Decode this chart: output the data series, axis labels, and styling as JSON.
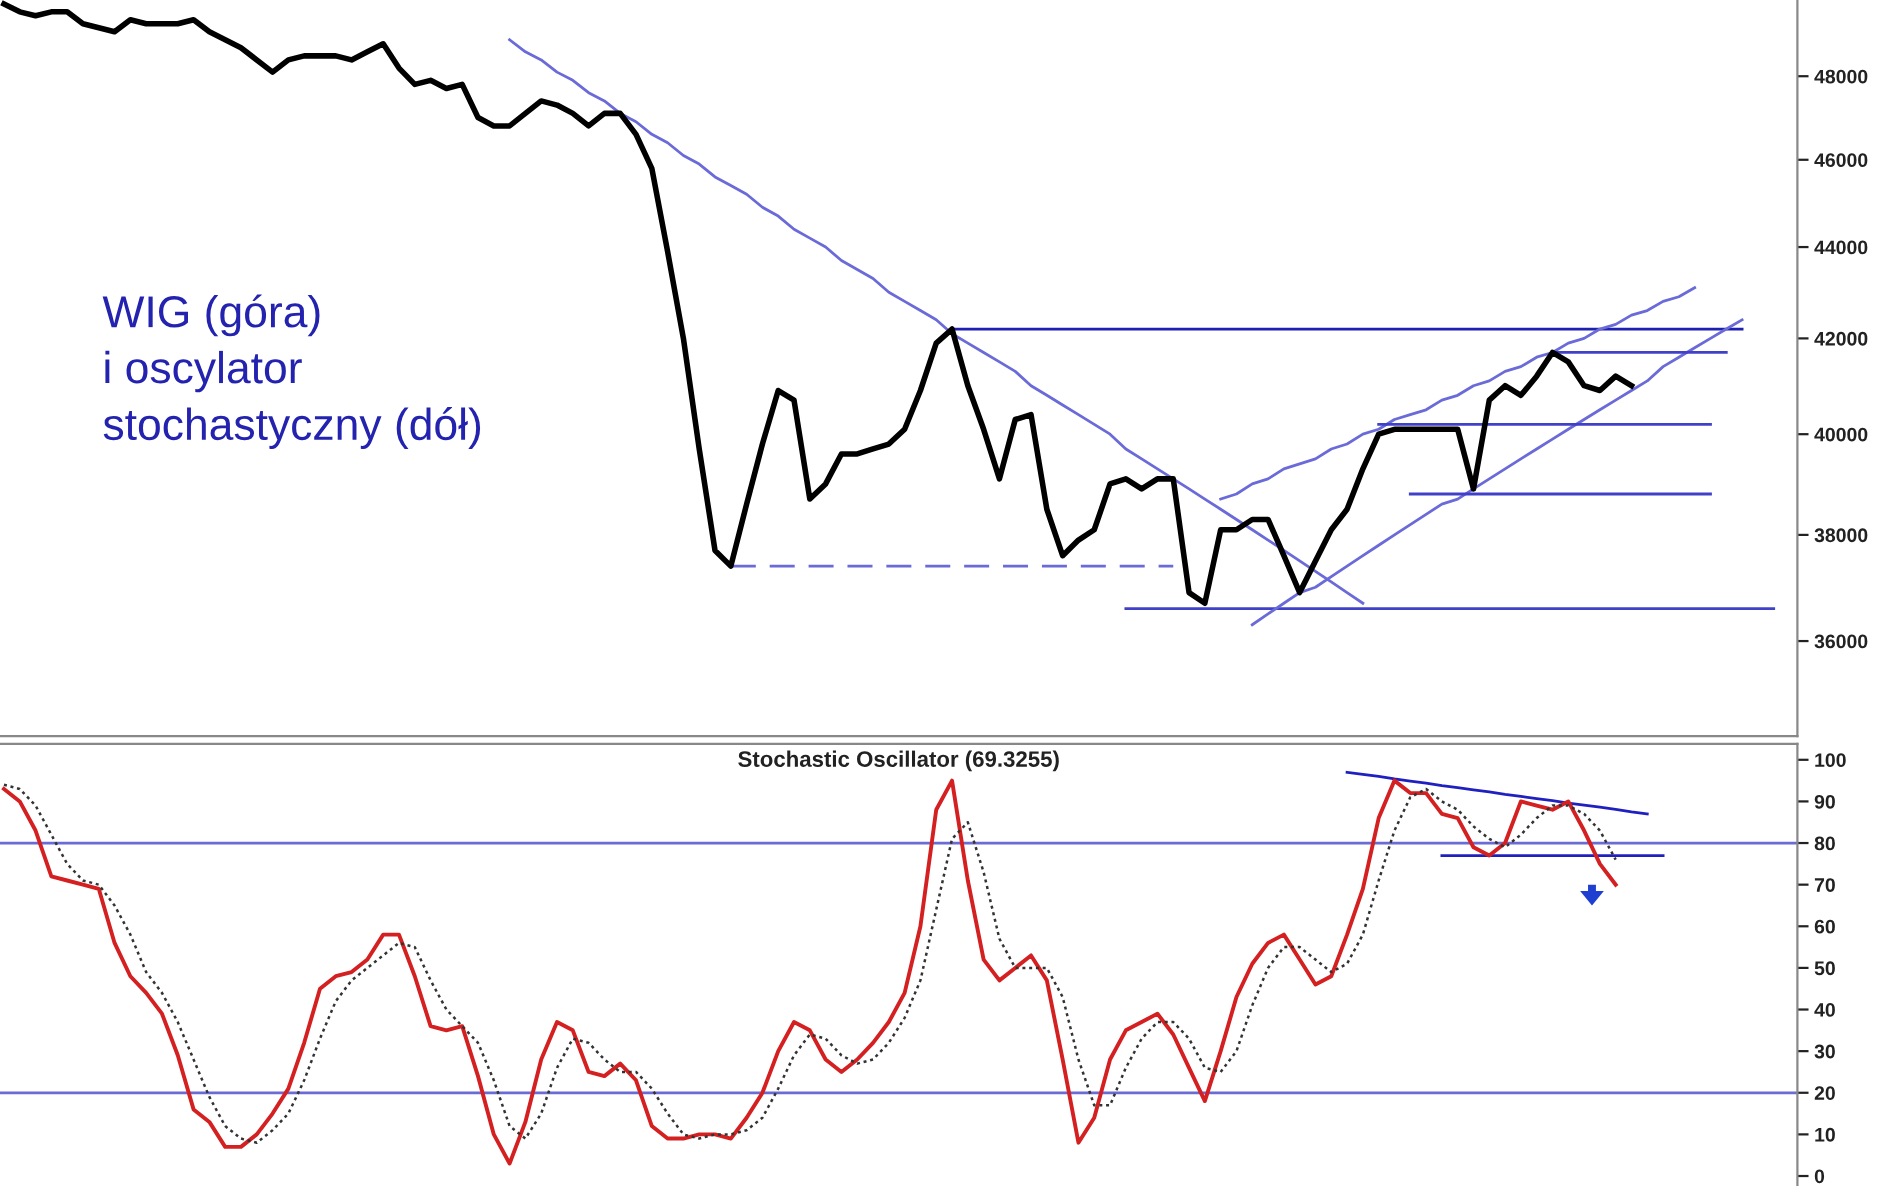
{
  "chart_data": [
    {
      "type": "line",
      "log": true,
      "ylim": [
        34300,
        49900
      ],
      "yticks": [
        36000,
        38000,
        40000,
        42000,
        44000,
        46000,
        48000
      ],
      "tick_labels": "y",
      "annotations": [
        "WIG (góra)\ni oscylator\nstochastyczny (dół)"
      ],
      "categories": [
        null,
        null,
        null,
        null,
        null,
        null,
        null,
        null,
        null,
        null,
        null,
        null,
        null,
        null,
        null,
        null,
        null,
        null,
        null,
        null,
        null,
        null,
        null,
        null,
        null,
        null,
        null,
        null,
        null,
        null,
        null,
        null,
        null,
        null,
        null,
        null,
        null,
        null,
        null,
        null,
        null,
        null,
        null,
        null,
        null,
        null,
        null,
        null,
        null,
        null,
        null,
        null,
        null,
        null,
        null,
        null,
        null,
        null,
        null,
        null,
        null,
        null,
        null,
        null,
        null,
        null,
        null,
        null,
        null,
        null,
        null,
        null,
        null,
        null,
        null,
        null,
        null,
        null,
        null,
        null,
        null,
        null,
        null,
        null,
        null,
        null,
        null,
        null,
        null,
        null,
        null,
        null,
        null,
        null,
        null,
        null,
        null,
        null,
        null,
        null,
        null,
        null,
        null,
        null,
        null,
        null,
        null,
        null,
        null,
        null,
        null,
        null,
        null,
        null
      ],
      "series": [
        {
          "color": "#000000",
          "values": [
            49800,
            49600,
            49500,
            49600,
            49600,
            49300,
            49200,
            49100,
            49400,
            49300,
            49300,
            49300,
            49400,
            49100,
            48900,
            48700,
            48400,
            48100,
            48400,
            48500,
            48500,
            48500,
            48400,
            48600,
            48800,
            48200,
            47800,
            47900,
            47700,
            47800,
            47000,
            46800,
            46800,
            47100,
            47400,
            47300,
            47100,
            46800,
            47100,
            47100,
            46600,
            45800,
            43900,
            42000,
            39700,
            37700,
            37400,
            38600,
            39800,
            40900,
            40700,
            38700,
            39000,
            39600,
            39600,
            39700,
            39800,
            40100,
            40900,
            41900,
            42200,
            41000,
            40100,
            39100,
            40300,
            40400,
            38500,
            37600,
            37900,
            38100,
            39000,
            39100,
            38900,
            39100,
            39100,
            36900,
            36700,
            38100,
            38100,
            38300,
            38300,
            37600,
            36900,
            37500,
            38100,
            38500,
            39300,
            40000,
            40100,
            40100,
            40100,
            40100,
            40100,
            38900,
            40700,
            41000,
            40800,
            41200,
            41700,
            41500,
            41000,
            40900,
            41200,
            41000,
            null,
            null,
            null,
            null,
            null,
            null,
            null,
            null,
            null,
            null
          ]
        },
        {
          "color": "#6a6ad8",
          "values": [
            null,
            null,
            null,
            null,
            null,
            null,
            null,
            null,
            null,
            null,
            null,
            null,
            null,
            null,
            null,
            null,
            null,
            null,
            null,
            null,
            null,
            null,
            null,
            null,
            null,
            null,
            null,
            null,
            null,
            null,
            null,
            null,
            48900,
            48600,
            48400,
            48100,
            47900,
            47600,
            47400,
            47100,
            46900,
            46600,
            46400,
            46100,
            45900,
            45600,
            45400,
            45200,
            44900,
            44700,
            44400,
            44200,
            44000,
            43700,
            43500,
            43300,
            43000,
            42800,
            42600,
            42400,
            42100,
            41900,
            41700,
            41500,
            41300,
            41000,
            40800,
            40600,
            40400,
            40200,
            40000,
            39700,
            39500,
            39300,
            39100,
            38900,
            38700,
            38500,
            38300,
            38100,
            37900,
            37700,
            37500,
            37300,
            37100,
            36900,
            36700,
            null,
            null,
            null,
            null,
            null,
            null,
            null,
            null,
            null,
            null,
            null,
            null,
            null,
            null,
            null,
            null,
            null,
            null,
            null,
            null,
            null,
            null,
            null,
            null,
            null,
            null,
            null
          ]
        },
        {
          "color": "#2020b0",
          "values": [
            null,
            null,
            null,
            null,
            null,
            null,
            null,
            null,
            null,
            null,
            null,
            null,
            null,
            null,
            null,
            null,
            null,
            null,
            null,
            null,
            null,
            null,
            null,
            null,
            null,
            null,
            null,
            null,
            null,
            null,
            null,
            null,
            null,
            null,
            null,
            null,
            null,
            null,
            null,
            null,
            null,
            null,
            null,
            null,
            null,
            null,
            null,
            null,
            null,
            null,
            null,
            null,
            null,
            null,
            null,
            null,
            null,
            null,
            null,
            null,
            42200,
            42200,
            42200,
            42200,
            42200,
            42200,
            42200,
            42200,
            42200,
            42200,
            42200,
            42200,
            42200,
            42200,
            42200,
            42200,
            42200,
            42200,
            42200,
            42200,
            42200,
            42200,
            42200,
            42200,
            42200,
            42200,
            42200,
            42200,
            42200,
            42200,
            42200,
            42200,
            42200,
            42200,
            42200,
            42200,
            42200,
            42200,
            42200,
            42200,
            42200,
            42200,
            42200,
            42200,
            42200,
            42200,
            42200,
            42200,
            42200,
            42200,
            42200,
            null,
            null,
            null
          ]
        },
        {
          "color": "#6a6ad8",
          "line_style": "dashed",
          "values": [
            null,
            null,
            null,
            null,
            null,
            null,
            null,
            null,
            null,
            null,
            null,
            null,
            null,
            null,
            null,
            null,
            null,
            null,
            null,
            null,
            null,
            null,
            null,
            null,
            null,
            null,
            null,
            null,
            null,
            null,
            null,
            null,
            null,
            null,
            null,
            null,
            null,
            null,
            null,
            null,
            null,
            null,
            null,
            null,
            null,
            null,
            37400,
            37400,
            37400,
            37400,
            37400,
            37400,
            37400,
            37400,
            37400,
            37400,
            37400,
            37400,
            37400,
            37400,
            37400,
            37400,
            37400,
            37400,
            37400,
            37400,
            37400,
            37400,
            37400,
            37400,
            37400,
            37400,
            37400,
            37400,
            37400,
            null,
            null,
            null,
            null,
            null,
            null,
            null,
            null,
            null,
            null,
            null,
            null,
            null,
            null,
            null,
            null,
            null,
            null,
            null,
            null,
            null,
            null,
            null,
            null,
            null,
            null,
            null,
            null,
            null,
            null,
            null,
            null,
            null,
            null,
            null,
            null,
            null,
            null,
            null
          ]
        },
        {
          "color": "#4040c8",
          "values": [
            null,
            null,
            null,
            null,
            null,
            null,
            null,
            null,
            null,
            null,
            null,
            null,
            null,
            null,
            null,
            null,
            null,
            null,
            null,
            null,
            null,
            null,
            null,
            null,
            null,
            null,
            null,
            null,
            null,
            null,
            null,
            null,
            null,
            null,
            null,
            null,
            null,
            null,
            null,
            null,
            null,
            null,
            null,
            null,
            null,
            null,
            null,
            null,
            null,
            null,
            null,
            null,
            null,
            null,
            null,
            null,
            null,
            null,
            null,
            null,
            null,
            null,
            null,
            null,
            null,
            null,
            null,
            null,
            null,
            null,
            null,
            36600,
            36600,
            36600,
            36600,
            36600,
            36600,
            36600,
            36600,
            36600,
            36600,
            36600,
            36600,
            36600,
            36600,
            36600,
            36600,
            36600,
            36600,
            36600,
            36600,
            36600,
            36600,
            36600,
            36600,
            36600,
            36600,
            36600,
            36600,
            36600,
            36600,
            36600,
            36600,
            36600,
            36600,
            36600,
            36600,
            36600,
            36600,
            36600,
            36600,
            36600,
            36600,
            null
          ]
        },
        {
          "color": "#6a6ad8",
          "values": [
            null,
            null,
            null,
            null,
            null,
            null,
            null,
            null,
            null,
            null,
            null,
            null,
            null,
            null,
            null,
            null,
            null,
            null,
            null,
            null,
            null,
            null,
            null,
            null,
            null,
            null,
            null,
            null,
            null,
            null,
            null,
            null,
            null,
            null,
            null,
            null,
            null,
            null,
            null,
            null,
            null,
            null,
            null,
            null,
            null,
            null,
            null,
            null,
            null,
            null,
            null,
            null,
            null,
            null,
            null,
            null,
            null,
            null,
            null,
            null,
            null,
            null,
            null,
            null,
            null,
            null,
            null,
            null,
            null,
            null,
            null,
            null,
            null,
            null,
            null,
            null,
            null,
            38700,
            38800,
            39000,
            39100,
            39300,
            39400,
            39500,
            39700,
            39800,
            40000,
            40100,
            40300,
            40400,
            40500,
            40700,
            40800,
            41000,
            41100,
            41300,
            41400,
            41600,
            41700,
            41900,
            42000,
            42200,
            42300,
            42500,
            42600,
            42800,
            42900,
            43100,
            null,
            null,
            null,
            null,
            null,
            null
          ]
        },
        {
          "color": "#6a6ad8",
          "values": [
            null,
            null,
            null,
            null,
            null,
            null,
            null,
            null,
            null,
            null,
            null,
            null,
            null,
            null,
            null,
            null,
            null,
            null,
            null,
            null,
            null,
            null,
            null,
            null,
            null,
            null,
            null,
            null,
            null,
            null,
            null,
            null,
            null,
            null,
            null,
            null,
            null,
            null,
            null,
            null,
            null,
            null,
            null,
            null,
            null,
            null,
            null,
            null,
            null,
            null,
            null,
            null,
            null,
            null,
            null,
            null,
            null,
            null,
            null,
            null,
            null,
            null,
            null,
            null,
            null,
            null,
            null,
            null,
            null,
            null,
            null,
            null,
            null,
            null,
            null,
            null,
            null,
            null,
            null,
            36300,
            36500,
            36700,
            36900,
            37000,
            37200,
            37400,
            37600,
            37800,
            38000,
            38200,
            38400,
            38600,
            38700,
            38900,
            39100,
            39300,
            39500,
            39700,
            39900,
            40100,
            40300,
            40500,
            40700,
            40900,
            41100,
            41400,
            41600,
            41800,
            42000,
            42200,
            42400,
            null,
            null,
            null
          ]
        },
        {
          "color": "#4040c8",
          "values": [
            null,
            null,
            null,
            null,
            null,
            null,
            null,
            null,
            null,
            null,
            null,
            null,
            null,
            null,
            null,
            null,
            null,
            null,
            null,
            null,
            null,
            null,
            null,
            null,
            null,
            null,
            null,
            null,
            null,
            null,
            null,
            null,
            null,
            null,
            null,
            null,
            null,
            null,
            null,
            null,
            null,
            null,
            null,
            null,
            null,
            null,
            null,
            null,
            null,
            null,
            null,
            null,
            null,
            null,
            null,
            null,
            null,
            null,
            null,
            null,
            null,
            null,
            null,
            null,
            null,
            null,
            null,
            null,
            null,
            null,
            null,
            null,
            null,
            null,
            null,
            null,
            null,
            null,
            null,
            null,
            null,
            null,
            null,
            null,
            null,
            null,
            null,
            40200,
            40200,
            40200,
            40200,
            40200,
            40200,
            40200,
            40200,
            40200,
            40200,
            40200,
            40200,
            40200,
            40200,
            40200,
            40200,
            40200,
            40200,
            40200,
            40200,
            40200,
            40200,
            null,
            null,
            null,
            null,
            null
          ]
        },
        {
          "color": "#4040c8",
          "values": [
            null,
            null,
            null,
            null,
            null,
            null,
            null,
            null,
            null,
            null,
            null,
            null,
            null,
            null,
            null,
            null,
            null,
            null,
            null,
            null,
            null,
            null,
            null,
            null,
            null,
            null,
            null,
            null,
            null,
            null,
            null,
            null,
            null,
            null,
            null,
            null,
            null,
            null,
            null,
            null,
            null,
            null,
            null,
            null,
            null,
            null,
            null,
            null,
            null,
            null,
            null,
            null,
            null,
            null,
            null,
            null,
            null,
            null,
            null,
            null,
            null,
            null,
            null,
            null,
            null,
            null,
            null,
            null,
            null,
            null,
            null,
            null,
            null,
            null,
            null,
            null,
            null,
            null,
            null,
            null,
            null,
            null,
            null,
            null,
            null,
            null,
            null,
            null,
            null,
            38800,
            38800,
            38800,
            38800,
            38800,
            38800,
            38800,
            38800,
            38800,
            38800,
            38800,
            38800,
            38800,
            38800,
            38800,
            38800,
            38800,
            38800,
            38800,
            38800,
            null,
            null,
            null,
            null,
            null
          ]
        },
        {
          "color": "#4040c8",
          "values": [
            null,
            null,
            null,
            null,
            null,
            null,
            null,
            null,
            null,
            null,
            null,
            null,
            null,
            null,
            null,
            null,
            null,
            null,
            null,
            null,
            null,
            null,
            null,
            null,
            null,
            null,
            null,
            null,
            null,
            null,
            null,
            null,
            null,
            null,
            null,
            null,
            null,
            null,
            null,
            null,
            null,
            null,
            null,
            null,
            null,
            null,
            null,
            null,
            null,
            null,
            null,
            null,
            null,
            null,
            null,
            null,
            null,
            null,
            null,
            null,
            null,
            null,
            null,
            null,
            null,
            null,
            null,
            null,
            null,
            null,
            null,
            null,
            null,
            null,
            null,
            null,
            null,
            null,
            null,
            null,
            null,
            null,
            null,
            null,
            null,
            null,
            null,
            null,
            null,
            null,
            null,
            null,
            null,
            null,
            null,
            null,
            null,
            null,
            41700,
            41700,
            41700,
            41700,
            41700,
            41700,
            41700,
            41700,
            41700,
            41700,
            41700,
            41700,
            null,
            null,
            null,
            null
          ]
        }
      ]
    },
    {
      "type": "line",
      "title": "Stochastic Oscillator (69.3255)",
      "ylim": [
        -2.4,
        103.8
      ],
      "yticks": [
        0,
        10,
        20,
        30,
        40,
        50,
        60,
        70,
        80,
        90,
        100
      ],
      "tick_labels": "y",
      "ref_lines": [
        {
          "axis": "y",
          "value": 80,
          "color": "#6b6bd6"
        },
        {
          "axis": "y",
          "value": 20,
          "color": "#6b6bd6"
        }
      ],
      "categories": [
        null,
        null,
        null,
        null,
        null,
        null,
        null,
        null,
        null,
        null,
        null,
        null,
        null,
        null,
        null,
        null,
        null,
        null,
        null,
        null,
        null,
        null,
        null,
        null,
        null,
        null,
        null,
        null,
        null,
        null,
        null,
        null,
        null,
        null,
        null,
        null,
        null,
        null,
        null,
        null,
        null,
        null,
        null,
        null,
        null,
        null,
        null,
        null,
        null,
        null,
        null,
        null,
        null,
        null,
        null,
        null,
        null,
        null,
        null,
        null,
        null,
        null,
        null,
        null,
        null,
        null,
        null,
        null,
        null,
        null,
        null,
        null,
        null,
        null,
        null,
        null,
        null,
        null,
        null,
        null,
        null,
        null,
        null,
        null,
        null,
        null,
        null,
        null,
        null,
        null,
        null,
        null,
        null,
        null,
        null,
        null,
        null,
        null,
        null,
        null,
        null,
        null,
        null,
        null,
        null,
        null,
        null,
        null,
        null,
        null,
        null,
        null,
        null,
        null
      ],
      "series": [
        {
          "color": "#d42020",
          "values": [
            93,
            90,
            83,
            72,
            71,
            70,
            69,
            56,
            48,
            44,
            39,
            29,
            16,
            13,
            7,
            7,
            10,
            15,
            21,
            32,
            45,
            48,
            49,
            52,
            58,
            58,
            48,
            36,
            35,
            36,
            24,
            10,
            3,
            13,
            28,
            37,
            35,
            25,
            24,
            27,
            23,
            12,
            9,
            9,
            10,
            10,
            9,
            14,
            20,
            30,
            37,
            35,
            28,
            25,
            28,
            32,
            37,
            44,
            60,
            88,
            95,
            71,
            52,
            47,
            50,
            53,
            47,
            28,
            8,
            14,
            28,
            35,
            37,
            39,
            34,
            26,
            18,
            30,
            43,
            51,
            56,
            58,
            52,
            46,
            48,
            58,
            69,
            86,
            95,
            92,
            92,
            87,
            86,
            79,
            77,
            80,
            90,
            89,
            88,
            90,
            83,
            75,
            70,
            null,
            null,
            null,
            null,
            null,
            null,
            null,
            null,
            null,
            null,
            null
          ]
        },
        {
          "color": "#333333",
          "line_style": "dotted",
          "values": [
            94,
            93,
            89,
            82,
            75,
            71,
            70,
            65,
            58,
            49,
            44,
            37,
            28,
            19,
            12,
            9,
            8,
            11,
            15,
            23,
            33,
            42,
            47,
            50,
            53,
            56,
            55,
            47,
            40,
            36,
            32,
            23,
            12,
            9,
            15,
            26,
            33,
            32,
            28,
            25,
            25,
            21,
            15,
            10,
            9,
            10,
            10,
            11,
            14,
            21,
            29,
            34,
            33,
            29,
            27,
            28,
            32,
            38,
            47,
            64,
            81,
            85,
            73,
            57,
            50,
            50,
            50,
            43,
            28,
            17,
            17,
            26,
            33,
            37,
            37,
            33,
            26,
            25,
            30,
            41,
            50,
            55,
            55,
            52,
            49,
            51,
            58,
            71,
            83,
            91,
            93,
            90,
            88,
            84,
            81,
            79,
            82,
            86,
            89,
            89,
            87,
            83,
            76,
            null,
            null,
            null,
            null,
            null,
            null,
            null,
            null,
            null,
            null,
            null
          ]
        },
        {
          "color": "#2020c0",
          "values": [
            null,
            null,
            null,
            null,
            null,
            null,
            null,
            null,
            null,
            null,
            null,
            null,
            null,
            null,
            null,
            null,
            null,
            null,
            null,
            null,
            null,
            null,
            null,
            null,
            null,
            null,
            null,
            null,
            null,
            null,
            null,
            null,
            null,
            null,
            null,
            null,
            null,
            null,
            null,
            null,
            null,
            null,
            null,
            null,
            null,
            null,
            null,
            null,
            null,
            null,
            null,
            null,
            null,
            null,
            null,
            null,
            null,
            null,
            null,
            null,
            null,
            null,
            null,
            null,
            null,
            null,
            null,
            null,
            null,
            null,
            null,
            null,
            null,
            null,
            null,
            null,
            null,
            null,
            null,
            null,
            null,
            null,
            null,
            null,
            null,
            97,
            96.5,
            96,
            95.4,
            94.9,
            94.4,
            93.8,
            93.3,
            92.8,
            92.3,
            91.7,
            91.2,
            90.7,
            90.2,
            89.6,
            89.1,
            88.6,
            88.1,
            87.5,
            87,
            null,
            null,
            null,
            null,
            null,
            null,
            null,
            null,
            null
          ]
        },
        {
          "color": "#2020c0",
          "values": [
            null,
            null,
            null,
            null,
            null,
            null,
            null,
            null,
            null,
            null,
            null,
            null,
            null,
            null,
            null,
            null,
            null,
            null,
            null,
            null,
            null,
            null,
            null,
            null,
            null,
            null,
            null,
            null,
            null,
            null,
            null,
            null,
            null,
            null,
            null,
            null,
            null,
            null,
            null,
            null,
            null,
            null,
            null,
            null,
            null,
            null,
            null,
            null,
            null,
            null,
            null,
            null,
            null,
            null,
            null,
            null,
            null,
            null,
            null,
            null,
            null,
            null,
            null,
            null,
            null,
            null,
            null,
            null,
            null,
            null,
            null,
            null,
            null,
            null,
            null,
            null,
            null,
            null,
            null,
            null,
            null,
            null,
            null,
            null,
            null,
            null,
            null,
            null,
            null,
            null,
            null,
            77,
            77,
            77,
            77,
            77,
            77,
            77,
            77,
            77,
            77,
            77,
            77,
            77,
            77,
            77,
            null,
            null,
            null,
            null,
            null,
            null,
            null,
            null
          ]
        }
      ]
    }
  ]
}
